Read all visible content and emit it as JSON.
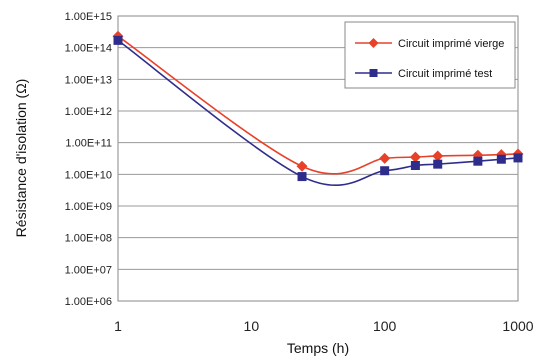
{
  "chart_data": {
    "type": "line",
    "xlabel": "Temps (h)",
    "ylabel": "Résistance d'isolation (Ω)",
    "x_scale": "log",
    "y_scale": "log",
    "xlim": [
      1,
      1000
    ],
    "ylim": [
      1000000,
      1000000000000000
    ],
    "x_ticks": [
      1,
      10,
      100,
      1000
    ],
    "x_tick_labels": [
      "1",
      "10",
      "100",
      "1000"
    ],
    "y_ticks": [
      1000000,
      10000000,
      100000000,
      1000000000,
      10000000000,
      100000000000,
      1000000000000,
      10000000000000,
      100000000000000,
      1000000000000000
    ],
    "y_tick_labels": [
      "1.00E+06",
      "1.00E+07",
      "1.00E+08",
      "1.00E+09",
      "1.00E+10",
      "1.00E+11",
      "1.00E+12",
      "1.00E+13",
      "1.00E+14",
      "1.00E+15"
    ],
    "grid": "horizontal",
    "legend_position": "top-right",
    "series": [
      {
        "name": "Circuit imprimé vierge",
        "color": "#e8412a",
        "marker": "diamond",
        "x": [
          1,
          24,
          100,
          170,
          250,
          500,
          750,
          1000
        ],
        "y": [
          230000000000000,
          18000000000,
          32000000000,
          35000000000,
          38000000000,
          40000000000,
          42000000000,
          44000000000
        ]
      },
      {
        "name": "Circuit imprimé test",
        "color": "#2f2d8c",
        "marker": "square",
        "x": [
          1,
          24,
          100,
          170,
          250,
          500,
          750,
          1000
        ],
        "y": [
          170000000000000,
          8500000000,
          13000000000,
          19000000000,
          21000000000,
          26000000000,
          30000000000,
          33000000000
        ]
      }
    ]
  }
}
